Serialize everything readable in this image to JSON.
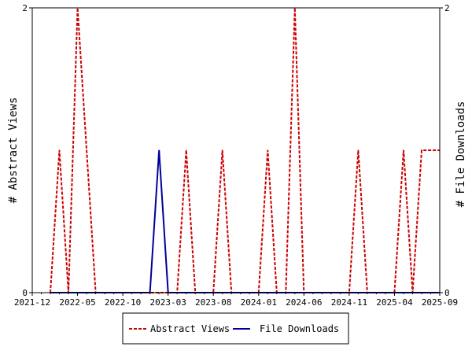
{
  "chart_data": {
    "type": "line",
    "x": [
      "2022-02",
      "2022-03",
      "2022-04",
      "2022-05",
      "2022-06",
      "2022-07",
      "2022-08",
      "2022-09",
      "2022-10",
      "2022-11",
      "2022-12",
      "2023-01",
      "2023-02",
      "2023-03",
      "2023-04",
      "2023-05",
      "2023-06",
      "2023-07",
      "2023-08",
      "2023-09",
      "2023-10",
      "2023-11",
      "2023-12",
      "2024-01",
      "2024-02",
      "2024-03",
      "2024-04",
      "2024-05",
      "2024-06",
      "2024-07",
      "2024-08",
      "2024-09",
      "2024-10",
      "2024-11",
      "2024-12",
      "2025-01",
      "2025-02",
      "2025-03",
      "2025-04",
      "2025-05",
      "2025-06",
      "2025-07",
      "2025-08",
      "2025-09"
    ],
    "series": [
      {
        "name": "Abstract Views",
        "color": "#cc0000",
        "dash": "dashed",
        "values": [
          0,
          1,
          0,
          2,
          1,
          0,
          0,
          0,
          0,
          0,
          0,
          0,
          0,
          0,
          0,
          1,
          0,
          0,
          0,
          1,
          0,
          0,
          0,
          0,
          1,
          0,
          0,
          2,
          0,
          0,
          0,
          0,
          0,
          0,
          1,
          0,
          0,
          0,
          0,
          1,
          0,
          1,
          1,
          1
        ]
      },
      {
        "name": "File Downloads",
        "color": "#000099",
        "dash": "solid",
        "values": [
          0,
          0,
          0,
          0,
          0,
          0,
          0,
          0,
          0,
          0,
          0,
          0,
          1,
          0,
          0,
          0,
          0,
          0,
          0,
          0,
          0,
          0,
          0,
          0,
          0,
          0,
          0,
          0,
          0,
          0,
          0,
          0,
          0,
          0,
          0,
          0,
          0,
          0,
          0,
          0,
          0,
          0,
          0,
          0
        ]
      }
    ],
    "x_ticks": [
      "2021-12",
      "2022-05",
      "2022-10",
      "2023-03",
      "2023-08",
      "2024-01",
      "2024-06",
      "2024-11",
      "2025-04",
      "2025-09"
    ],
    "x_range": [
      "2021-12",
      "2025-09"
    ],
    "ylabel_left": "# Abstract Views",
    "ylabel_right": "# File Downloads",
    "ylim": [
      0,
      2
    ],
    "y_ticks_left": [
      "0",
      "2"
    ],
    "y_ticks_right": [
      "0",
      "2"
    ],
    "grid": false,
    "legend_position": "bottom-center"
  }
}
